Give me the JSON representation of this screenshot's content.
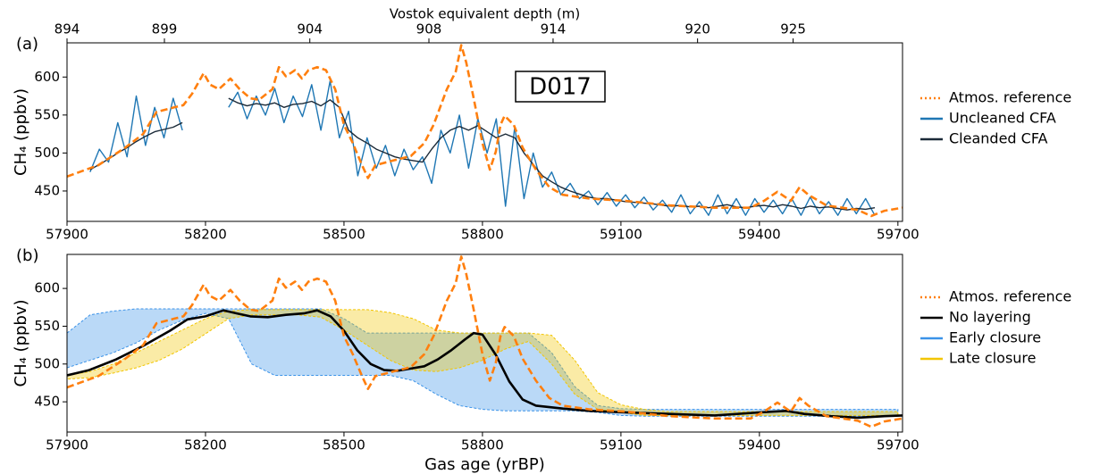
{
  "chart_data": [
    {
      "type": "line",
      "panel_label": "(a)",
      "annotation": "D017",
      "x2label": "Vostok equivalent depth (m)",
      "ylabel": "CH₄ (ppbv)",
      "xlim": [
        57900,
        59710
      ],
      "xticks": [
        57900,
        58200,
        58500,
        58800,
        59100,
        59400,
        59700
      ],
      "ylim": [
        410,
        645
      ],
      "yticks": [
        450,
        500,
        550,
        600
      ],
      "x2ticks": [
        894,
        899,
        904,
        908,
        914,
        920,
        925
      ],
      "x2tick_ages": [
        57900,
        58111,
        58426,
        58684,
        58953,
        59266,
        59473
      ],
      "x": [
        57950,
        57970,
        57990,
        58010,
        58030,
        58050,
        58070,
        58090,
        58110,
        58130,
        58150,
        58170,
        58190,
        58210,
        58230,
        58250,
        58270,
        58290,
        58310,
        58330,
        58350,
        58370,
        58390,
        58410,
        58430,
        58450,
        58470,
        58490,
        58510,
        58530,
        58550,
        58570,
        58590,
        58610,
        58630,
        58650,
        58670,
        58690,
        58710,
        58730,
        58750,
        58770,
        58790,
        58810,
        58830,
        58850,
        58870,
        58890,
        58910,
        58930,
        58950,
        58970,
        58990,
        59010,
        59030,
        59050,
        59070,
        59090,
        59110,
        59130,
        59150,
        59170,
        59190,
        59210,
        59230,
        59250,
        59270,
        59290,
        59310,
        59330,
        59350,
        59370,
        59390,
        59410,
        59430,
        59450,
        59470,
        59490,
        59510,
        59530,
        59550,
        59570,
        59590,
        59610,
        59630,
        59650
      ],
      "series": [
        {
          "name": "Atmos. reference",
          "color": "#ff7f0e",
          "linestyle": "dashed",
          "x": [
            57900,
            57968,
            58026,
            58065,
            58094,
            58132,
            58152,
            58171,
            58196,
            58210,
            58229,
            58254,
            58274,
            58297,
            58316,
            58345,
            58359,
            58374,
            58394,
            58409,
            58423,
            58442,
            58461,
            58481,
            58500,
            58519,
            58539,
            58552,
            58568,
            58606,
            58645,
            58674,
            58694,
            58723,
            58742,
            58754,
            58765,
            58781,
            58800,
            58816,
            58829,
            58839,
            58848,
            58868,
            58887,
            58916,
            58945,
            58974,
            59032,
            59110,
            59206,
            59303,
            59381,
            59410,
            59439,
            59468,
            59487,
            59506,
            59545,
            59613,
            59642,
            59671,
            59710
          ],
          "values": [
            469,
            484,
            507,
            525,
            554,
            560,
            563,
            578,
            605,
            590,
            584,
            598,
            584,
            572,
            570,
            584,
            613,
            601,
            609,
            598,
            609,
            613,
            609,
            584,
            537,
            513,
            484,
            467,
            484,
            490,
            496,
            513,
            537,
            584,
            607,
            642,
            619,
            572,
            513,
            478,
            502,
            537,
            549,
            537,
            507,
            478,
            455,
            445,
            440,
            437,
            431,
            428,
            428,
            437,
            449,
            437,
            455,
            445,
            431,
            425,
            417,
            424,
            428
          ]
        },
        {
          "name": "Uncleaned CFA",
          "color": "#1f77b4",
          "linestyle": "solid",
          "values": [
            475,
            505,
            488,
            540,
            495,
            575,
            510,
            560,
            520,
            572,
            530,
            null,
            null,
            null,
            null,
            560,
            580,
            545,
            575,
            550,
            585,
            540,
            575,
            548,
            590,
            530,
            595,
            520,
            555,
            470,
            520,
            480,
            510,
            470,
            505,
            478,
            495,
            460,
            530,
            500,
            550,
            480,
            545,
            500,
            545,
            430,
            535,
            440,
            500,
            455,
            475,
            445,
            460,
            440,
            450,
            432,
            448,
            430,
            445,
            428,
            442,
            425,
            438,
            422,
            445,
            420,
            436,
            418,
            445,
            420,
            440,
            418,
            440,
            422,
            438,
            420,
            440,
            418,
            442,
            420,
            436,
            418,
            440,
            420,
            440,
            418
          ]
        },
        {
          "name": "Cleanded CFA",
          "color": "#1b2a38",
          "linestyle": "solid",
          "values": [
            478,
            485,
            492,
            500,
            507,
            515,
            522,
            528,
            531,
            534,
            540,
            null,
            null,
            null,
            null,
            572,
            566,
            562,
            565,
            563,
            566,
            560,
            564,
            565,
            568,
            562,
            570,
            560,
            530,
            520,
            513,
            505,
            500,
            495,
            492,
            490,
            488,
            505,
            520,
            530,
            535,
            530,
            536,
            528,
            520,
            525,
            520,
            500,
            485,
            470,
            462,
            455,
            450,
            446,
            442,
            440,
            440,
            438,
            436,
            435,
            434,
            433,
            431,
            430,
            431,
            429,
            430,
            428,
            430,
            432,
            429,
            428,
            430,
            431,
            429,
            432,
            430,
            427,
            430,
            428,
            429,
            427,
            425,
            427,
            426,
            428
          ]
        }
      ]
    },
    {
      "type": "line",
      "panel_label": "(b)",
      "ylabel": "CH₄ (ppbv)",
      "xlabel": "Gas age (yrBP)",
      "xlim": [
        57900,
        59710
      ],
      "xticks": [
        57900,
        58200,
        58500,
        58800,
        59100,
        59400,
        59700
      ],
      "ylim": [
        410,
        645
      ],
      "yticks": [
        450,
        500,
        550,
        600
      ],
      "x": [
        57900,
        57950,
        58000,
        58050,
        58100,
        58150,
        58200,
        58250,
        58300,
        58350,
        58400,
        58450,
        58500,
        58550,
        58600,
        58650,
        58700,
        58750,
        58800,
        58850,
        58900,
        58950,
        59000,
        59050,
        59100,
        59150,
        59200,
        59250,
        59300,
        59350,
        59400,
        59450,
        59500,
        59550,
        59600,
        59650,
        59700
      ],
      "series": [
        {
          "name": "Atmos. reference",
          "color": "#ff7f0e",
          "linestyle": "dashed",
          "x": [
            57900,
            57968,
            58026,
            58065,
            58094,
            58132,
            58152,
            58171,
            58196,
            58210,
            58229,
            58254,
            58274,
            58297,
            58316,
            58345,
            58359,
            58374,
            58394,
            58409,
            58423,
            58442,
            58461,
            58481,
            58500,
            58519,
            58539,
            58552,
            58568,
            58606,
            58645,
            58674,
            58694,
            58723,
            58742,
            58754,
            58765,
            58781,
            58800,
            58816,
            58829,
            58839,
            58848,
            58868,
            58887,
            58916,
            58945,
            58974,
            59032,
            59110,
            59206,
            59303,
            59381,
            59410,
            59439,
            59468,
            59487,
            59506,
            59545,
            59613,
            59642,
            59671,
            59710
          ],
          "values": [
            469,
            484,
            507,
            525,
            554,
            560,
            563,
            578,
            605,
            590,
            584,
            598,
            584,
            572,
            570,
            584,
            613,
            601,
            609,
            598,
            609,
            613,
            609,
            584,
            537,
            513,
            484,
            467,
            484,
            490,
            496,
            513,
            537,
            584,
            607,
            642,
            619,
            572,
            513,
            478,
            502,
            537,
            549,
            537,
            507,
            478,
            455,
            445,
            440,
            437,
            431,
            428,
            428,
            437,
            449,
            437,
            455,
            445,
            431,
            425,
            417,
            424,
            428
          ]
        },
        {
          "name": "No layering",
          "color": "#000000",
          "linestyle": "solid",
          "x": [
            57900,
            57948,
            58006,
            58065,
            58123,
            58161,
            58200,
            58239,
            58268,
            58297,
            58335,
            58374,
            58413,
            58442,
            58471,
            58500,
            58529,
            58558,
            58587,
            58616,
            58645,
            58674,
            58703,
            58732,
            58761,
            58781,
            58800,
            58829,
            58858,
            58887,
            58916,
            58974,
            59032,
            59110,
            59206,
            59303,
            59400,
            59458,
            59497,
            59555,
            59613,
            59671,
            59710
          ],
          "values": [
            485,
            492,
            506,
            524,
            544,
            559,
            563,
            571,
            567,
            563,
            562,
            565,
            567,
            571,
            563,
            544,
            518,
            500,
            492,
            491,
            494,
            497,
            506,
            518,
            532,
            541,
            539,
            512,
            477,
            453,
            445,
            441,
            438,
            436,
            434,
            432,
            436,
            438,
            434,
            431,
            429,
            431,
            432
          ]
        },
        {
          "name": "Early closure",
          "color": "#3a92e8",
          "upper": [
            541,
            565,
            570,
            573,
            573,
            573,
            573,
            573,
            573,
            573,
            573,
            573,
            560,
            541,
            541,
            541,
            541,
            541,
            541,
            541,
            541,
            515,
            470,
            445,
            441,
            440,
            440,
            440,
            440,
            440,
            440,
            440,
            440,
            440,
            440,
            440,
            440
          ],
          "lower": [
            495,
            505,
            515,
            528,
            545,
            558,
            567,
            560,
            500,
            485,
            485,
            485,
            485,
            485,
            485,
            478,
            460,
            445,
            440,
            438,
            438,
            438,
            438,
            436,
            432,
            431,
            431,
            431,
            431,
            431,
            431,
            431,
            431,
            431,
            431,
            431,
            431
          ]
        },
        {
          "name": "Late closure",
          "color": "#f2c500",
          "upper": [
            485,
            490,
            500,
            515,
            530,
            545,
            560,
            570,
            572,
            572,
            572,
            572,
            572,
            572,
            568,
            560,
            545,
            541,
            541,
            541,
            541,
            538,
            505,
            462,
            446,
            440,
            437,
            437,
            437,
            437,
            437,
            437,
            437,
            437,
            437,
            437,
            437
          ],
          "lower": [
            480,
            482,
            488,
            495,
            505,
            520,
            540,
            560,
            565,
            565,
            565,
            562,
            545,
            525,
            505,
            492,
            490,
            495,
            505,
            520,
            530,
            500,
            460,
            440,
            436,
            432,
            432,
            432,
            432,
            432,
            432,
            432,
            432,
            432,
            432,
            432,
            432
          ]
        }
      ]
    }
  ]
}
